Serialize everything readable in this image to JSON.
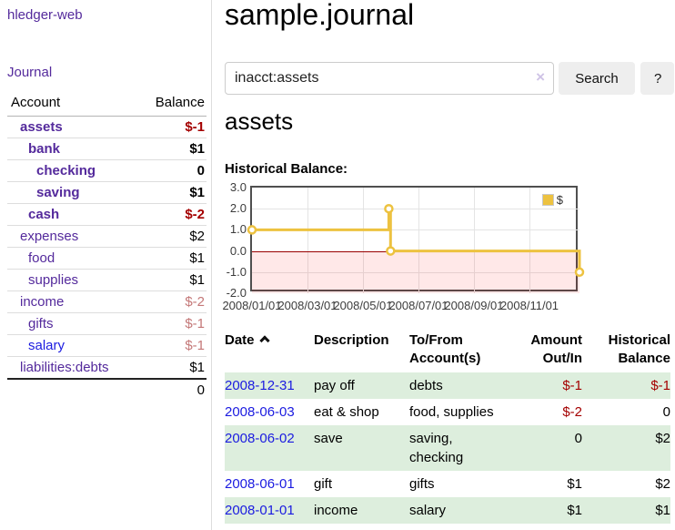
{
  "colors": {
    "link_purple": "#542a9c",
    "link_blue": "#1b1be0",
    "negative_strong": "#a40000",
    "negative_soft": "#c47878",
    "row_stripe_green": "#ddeedd",
    "button_bg": "#eeeeee",
    "chart_series_gold": "#EDC240",
    "chart_zero_line": "#990000",
    "chart_negative_region": "rgba(255,0,0,0.09)"
  },
  "sidebar": {
    "brand": "hledger-web",
    "journal_link": "Journal",
    "accounts": {
      "col_account": "Account",
      "col_balance": "Balance",
      "rows": [
        {
          "account": "assets",
          "depth": 1,
          "bold": true,
          "link": "purple",
          "balance": "$-1",
          "balance_style": "neg-strong"
        },
        {
          "account": "bank",
          "depth": 2,
          "bold": true,
          "link": "purple",
          "balance": "$1",
          "balance_style": "pos-strong"
        },
        {
          "account": "checking",
          "depth": 3,
          "bold": true,
          "link": "purple",
          "balance": "0",
          "balance_style": "pos-strong"
        },
        {
          "account": "saving",
          "depth": 3,
          "bold": true,
          "link": "purple",
          "balance": "$1",
          "balance_style": "pos-strong"
        },
        {
          "account": "cash",
          "depth": 2,
          "bold": true,
          "link": "purple",
          "balance": "$-2",
          "balance_style": "neg-strong"
        },
        {
          "account": "expenses",
          "depth": 1,
          "bold": false,
          "link": "purple",
          "balance": "$2",
          "balance_style": "plain"
        },
        {
          "account": "food",
          "depth": 2,
          "bold": false,
          "link": "purple",
          "balance": "$1",
          "balance_style": "plain"
        },
        {
          "account": "supplies",
          "depth": 2,
          "bold": false,
          "link": "purple",
          "balance": "$1",
          "balance_style": "plain"
        },
        {
          "account": "income",
          "depth": 1,
          "bold": false,
          "link": "purple",
          "balance": "$-2",
          "balance_style": "neg-soft"
        },
        {
          "account": "gifts",
          "depth": 2,
          "bold": false,
          "link": "purple",
          "balance": "$-1",
          "balance_style": "neg-soft"
        },
        {
          "account": "salary",
          "depth": 2,
          "bold": false,
          "link": "blue",
          "balance": "$-1",
          "balance_style": "neg-soft"
        },
        {
          "account": "liabilities:debts",
          "depth": 1,
          "bold": false,
          "link": "purple",
          "balance": "$1",
          "balance_style": "plain"
        }
      ],
      "total": "0"
    }
  },
  "header": {
    "title": "sample.journal"
  },
  "search": {
    "value": "inacct:assets",
    "clear_icon": "×",
    "button_label": "Search",
    "help_label": "?"
  },
  "account_page": {
    "heading": "assets",
    "chart_label": "Historical Balance:"
  },
  "chart_data": {
    "type": "line",
    "step": true,
    "title": "Historical Balance",
    "series": [
      {
        "name": "$",
        "color": "#EDC240",
        "points": [
          [
            "2008-01-01",
            1
          ],
          [
            "2008-06-01",
            2
          ],
          [
            "2008-06-03",
            0
          ],
          [
            "2008-12-31",
            -1
          ]
        ]
      }
    ],
    "ylim": [
      -2,
      3
    ],
    "yticks": [
      "3.0",
      "2.0",
      "1.0",
      "0.0",
      "-1.0",
      "-2.0"
    ],
    "xticks": [
      "2008/01/01",
      "2008/03/01",
      "2008/05/01",
      "2008/07/01",
      "2008/09/01",
      "2008/11/01"
    ],
    "x_range": [
      "2008-01-01",
      "2008-12-31"
    ],
    "legend_label": "$",
    "legend_position": "top-right",
    "grid": true,
    "negative_region_shaded": true
  },
  "register": {
    "headers": {
      "date": "Date",
      "sort_icon": "chevron-up",
      "description": "Description",
      "accounts_line1": "To/From",
      "accounts_line2": "Account(s)",
      "amount_line1": "Amount",
      "amount_line2": "Out/In",
      "balance_line1": "Historical",
      "balance_line2": "Balance"
    },
    "rows": [
      {
        "date": "2008-12-31",
        "description": "pay off",
        "accounts": "debts",
        "amount": "$-1",
        "amount_negative": true,
        "balance": "$-1",
        "balance_negative": true,
        "striped": true
      },
      {
        "date": "2008-06-03",
        "description": "eat & shop",
        "accounts": "food, supplies",
        "amount": "$-2",
        "amount_negative": true,
        "balance": "0",
        "balance_negative": false,
        "striped": false
      },
      {
        "date": "2008-06-02",
        "description": "save",
        "accounts": "saving, checking",
        "amount": "0",
        "amount_negative": false,
        "balance": "$2",
        "balance_negative": false,
        "striped": true
      },
      {
        "date": "2008-06-01",
        "description": "gift",
        "accounts": "gifts",
        "amount": "$1",
        "amount_negative": false,
        "balance": "$2",
        "balance_negative": false,
        "striped": false
      },
      {
        "date": "2008-01-01",
        "description": "income",
        "accounts": "salary",
        "amount": "$1",
        "amount_negative": false,
        "balance": "$1",
        "balance_negative": false,
        "striped": true
      }
    ]
  }
}
